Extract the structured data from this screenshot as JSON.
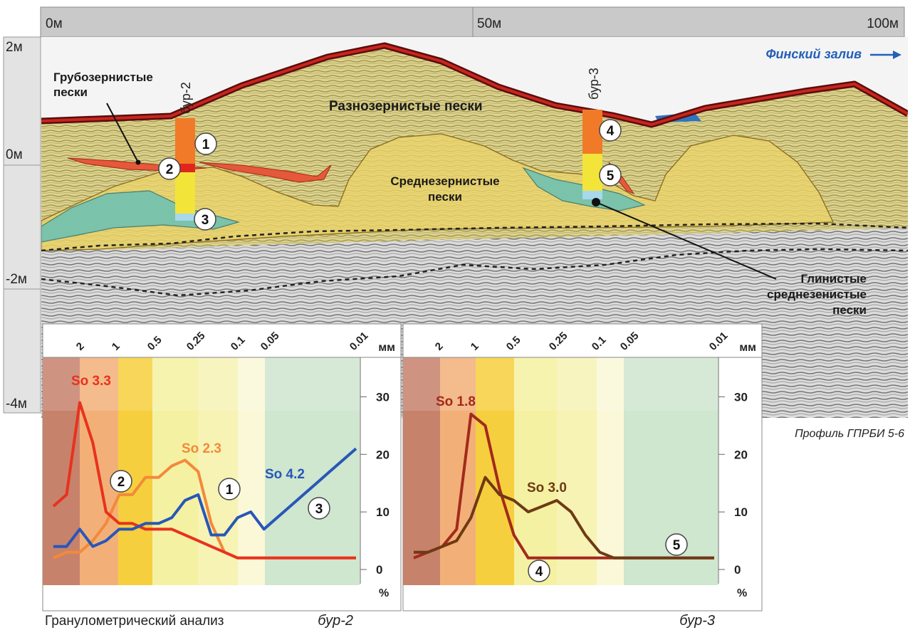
{
  "profile": {
    "distance_ticks": [
      "0м",
      "50м",
      "100м"
    ],
    "depth_ticks": [
      "2м",
      "0м",
      "-2м",
      "-4м"
    ],
    "direction_label": "Финский залив",
    "profile_name": "Профиль ГПРБИ 5-6",
    "layers": {
      "coarse": "Грубозернистые пески",
      "mixed": "Разнозернистые пески",
      "medium": "Среднезернистые пески",
      "clay": "Глинистые среднезенистые пески"
    },
    "boreholes": [
      {
        "name": "бур-2",
        "samples": [
          "1",
          "2",
          "3"
        ]
      },
      {
        "name": "бур-3",
        "samples": [
          "4",
          "5"
        ]
      }
    ]
  },
  "analysis_title": "Гранулометрический анализ",
  "chart_data": [
    {
      "type": "line",
      "title": "бур-2",
      "x_ticks": [
        "2",
        "1",
        "0.5",
        "0.25",
        "0.1",
        "0.05",
        "0.01"
      ],
      "x_unit": "мм",
      "y_ticks": [
        "30",
        "20",
        "10",
        "0"
      ],
      "y_unit": "%",
      "ylim": [
        0,
        35
      ],
      "series": [
        {
          "name": "1",
          "label": "So 2.3",
          "color": "#f28a3a",
          "values": [
            2,
            3,
            3,
            5,
            8,
            13,
            13,
            16,
            16,
            18,
            19,
            17,
            8,
            3,
            2,
            2,
            2,
            2,
            2,
            2,
            2,
            2,
            2,
            2
          ]
        },
        {
          "name": "2",
          "label": "So 3.3",
          "color": "#e8321e",
          "values": [
            11,
            13,
            29,
            22,
            10,
            8,
            8,
            7,
            7,
            7,
            6,
            5,
            4,
            3,
            2,
            2,
            2,
            2,
            2,
            2,
            2,
            2,
            2,
            2
          ]
        },
        {
          "name": "3",
          "label": "So 4.2",
          "color": "#2857b8",
          "values": [
            4,
            4,
            7,
            4,
            5,
            7,
            7,
            8,
            8,
            9,
            12,
            13,
            6,
            6,
            9,
            10,
            7,
            9,
            11,
            13,
            15,
            17,
            19,
            21
          ]
        }
      ]
    },
    {
      "type": "line",
      "title": "бур-3",
      "x_ticks": [
        "2",
        "1",
        "0.5",
        "0.25",
        "0.1",
        "0.05",
        "0.01"
      ],
      "x_unit": "мм",
      "y_ticks": [
        "30",
        "20",
        "10",
        "0"
      ],
      "y_unit": "%",
      "ylim": [
        0,
        35
      ],
      "series": [
        {
          "name": "4",
          "label": "So 1.8",
          "color": "#a32a1c",
          "values": [
            2,
            3,
            4,
            7,
            27,
            25,
            14,
            6,
            2,
            2,
            2,
            2,
            2,
            2,
            2,
            2,
            2,
            2,
            2,
            2,
            2,
            2
          ]
        },
        {
          "name": "5",
          "label": "So 3.0",
          "color": "#6e3a14",
          "values": [
            3,
            3,
            4,
            5,
            9,
            16,
            13,
            12,
            10,
            11,
            12,
            10,
            6,
            3,
            2,
            2,
            2,
            2,
            2,
            2,
            2,
            2
          ]
        }
      ]
    }
  ]
}
